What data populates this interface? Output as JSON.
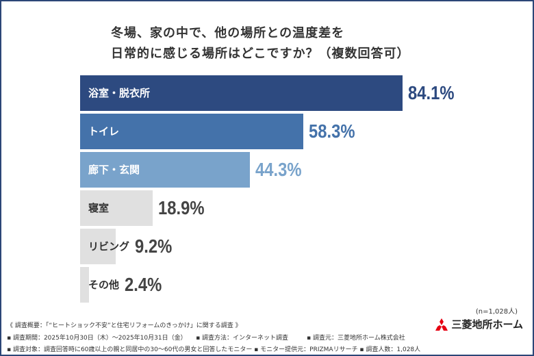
{
  "chart_data": {
    "type": "bar",
    "orientation": "horizontal",
    "title": [
      "冬場、家の中で、他の場所との温度差を",
      "日常的に感じる場所はどこですか？（複数回答可）"
    ],
    "categories": [
      "浴室・脱衣所",
      "トイレ",
      "廊下・玄関",
      "寝室",
      "リビング",
      "その他"
    ],
    "values": [
      84.1,
      58.3,
      44.3,
      18.9,
      9.2,
      2.4
    ],
    "labels": [
      "84.1%",
      "58.3%",
      "44.3%",
      "18.9%",
      "9.2%",
      "2.4%"
    ],
    "bar_colors": [
      "#2d4a80",
      "#4472aa",
      "#79a3cb",
      "#e0e0e0",
      "#e0e0e0",
      "#e0e0e0"
    ],
    "value_colors": [
      "#2d4a80",
      "#4472aa",
      "#79a3cb",
      "#444444",
      "#444444",
      "#444444"
    ],
    "label_colors": [
      "#ffffff",
      "#ffffff",
      "#ffffff",
      "#333333",
      "#333333",
      "#333333"
    ],
    "xlim": [
      0,
      100
    ],
    "grid": false,
    "note": "(n=1,028人)"
  },
  "footer": {
    "line1": "《 調査概要：「“ヒートショック不安”と住宅リフォームのきっかけ」に関する調査 》",
    "line2": "▪ 調査期間：2025年10月30日（木）～2025年10月31日（金）　　▪ 調査方法：インターネット調査　　　▪ 調査元：三菱地所ホーム株式会社",
    "line3": "▪ 調査対象：調査回答時に60歳以上の親と同居中の30～60代の男女と回答したモニター ▪ モニター提供元：PRIZMAリサーチ ▪ 調査人数：1,028人"
  },
  "logo": {
    "text": "三菱地所ホーム",
    "icon": "mitsubishi-three-diamonds-icon",
    "color": "#e60012"
  }
}
